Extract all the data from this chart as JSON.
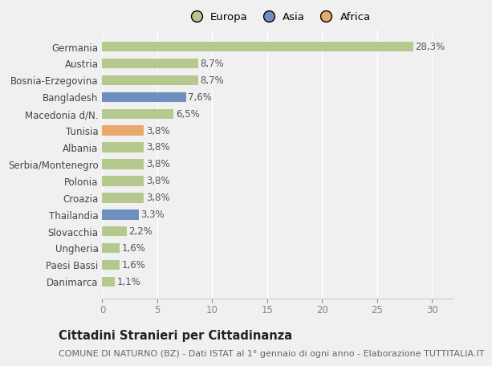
{
  "categories": [
    "Germania",
    "Austria",
    "Bosnia-Erzegovina",
    "Bangladesh",
    "Macedonia d/N.",
    "Tunisia",
    "Albania",
    "Serbia/Montenegro",
    "Polonia",
    "Croazia",
    "Thailandia",
    "Slovacchia",
    "Ungheria",
    "Paesi Bassi",
    "Danimarca"
  ],
  "values": [
    28.3,
    8.7,
    8.7,
    7.6,
    6.5,
    3.8,
    3.8,
    3.8,
    3.8,
    3.8,
    3.3,
    2.2,
    1.6,
    1.6,
    1.1
  ],
  "continents": [
    "Europa",
    "Europa",
    "Europa",
    "Asia",
    "Europa",
    "Africa",
    "Europa",
    "Europa",
    "Europa",
    "Europa",
    "Asia",
    "Europa",
    "Europa",
    "Europa",
    "Europa"
  ],
  "colors": {
    "Europa": "#b5c98e",
    "Asia": "#6e8fc0",
    "Africa": "#e8a96b"
  },
  "xlim": [
    0,
    32
  ],
  "xticks": [
    0,
    5,
    10,
    15,
    20,
    25,
    30
  ],
  "title": "Cittadini Stranieri per Cittadinanza",
  "subtitle": "COMUNE DI NATURNO (BZ) - Dati ISTAT al 1° gennaio di ogni anno - Elaborazione TUTTITALIA.IT",
  "background_color": "#f0f0f0",
  "plot_background": "#f0f0f0",
  "grid_color": "#ffffff",
  "bar_height": 0.6,
  "title_fontsize": 10.5,
  "subtitle_fontsize": 8,
  "label_fontsize": 8.5,
  "tick_fontsize": 8.5,
  "value_fontsize": 8.5
}
